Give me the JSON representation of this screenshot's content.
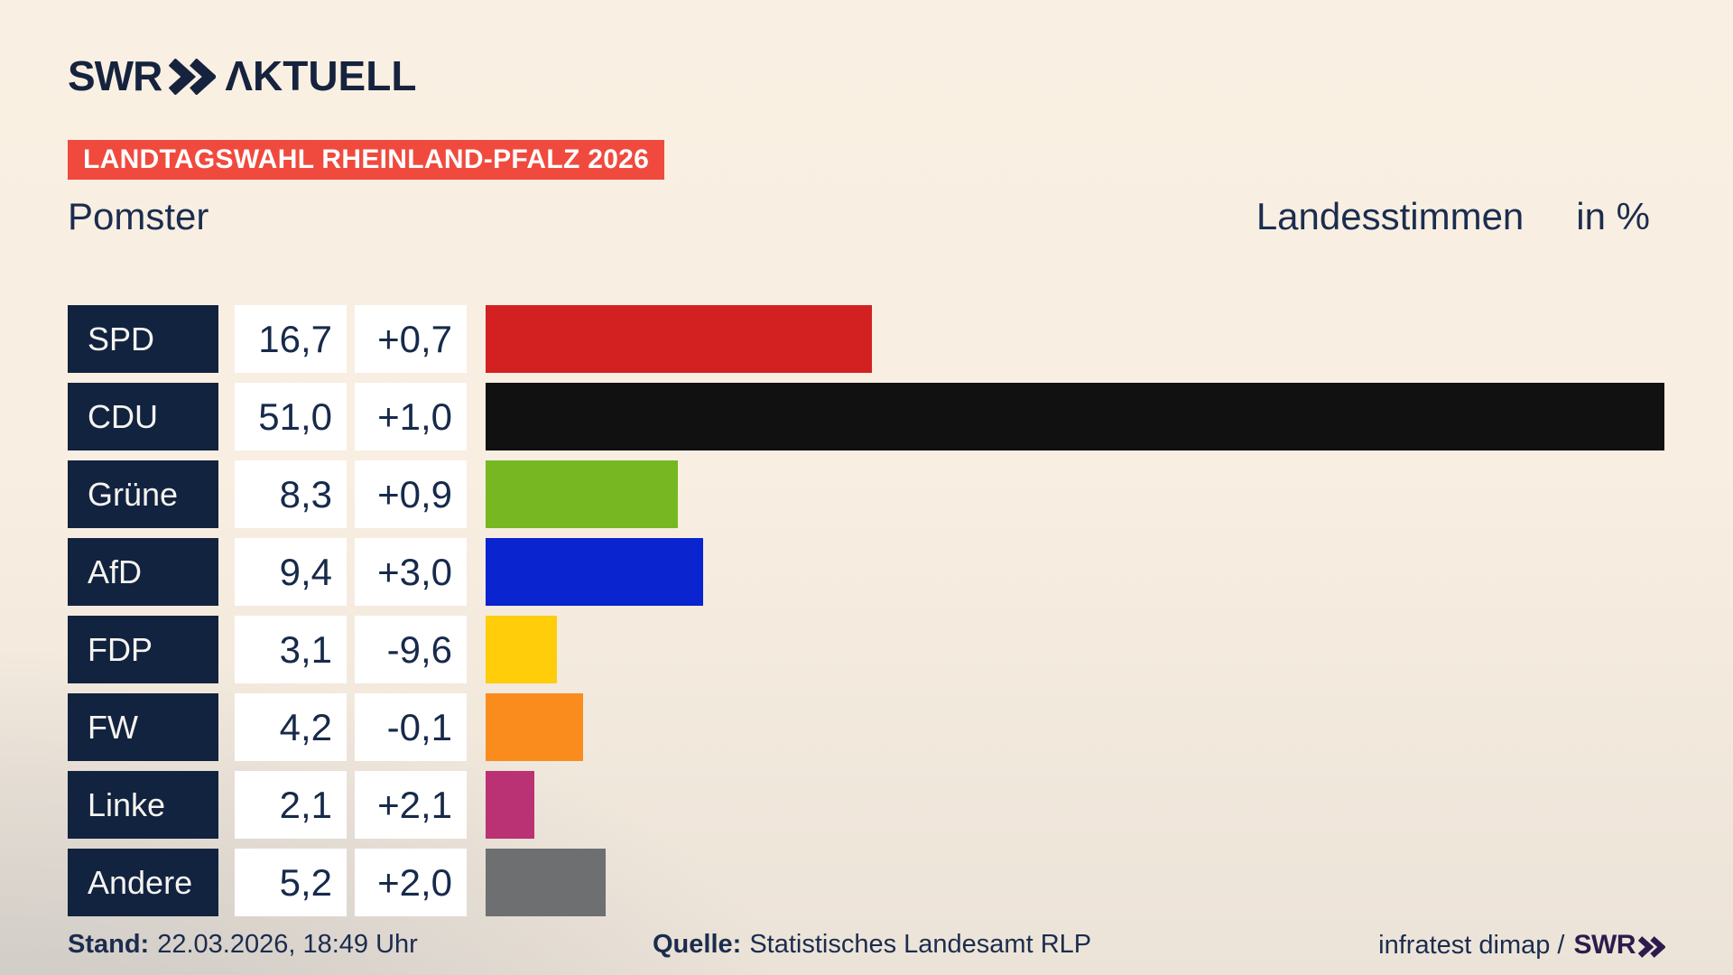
{
  "brand": {
    "logo_text": "SWR",
    "logo_suffix": "ΛKTUELL",
    "logo_color": "#16233e"
  },
  "header": {
    "badge": "LANDTAGSWAHL RHEINLAND-PFALZ 2026",
    "badge_color": "#f04a3e",
    "title": "Pomster",
    "measure": "Landesstimmen",
    "unit": "in %"
  },
  "chart_data": {
    "type": "bar",
    "orientation": "horizontal",
    "title": "Landtagswahl Rheinland-Pfalz 2026 — Pomster, Landesstimmen in %",
    "value_axis_max": 51.0,
    "grid": false,
    "legend": false,
    "categories": [
      "SPD",
      "CDU",
      "Grüne",
      "AfD",
      "FDP",
      "FW",
      "Linke",
      "Andere"
    ],
    "values": [
      16.7,
      51.0,
      8.3,
      9.4,
      3.1,
      4.2,
      2.1,
      5.2
    ],
    "changes": [
      0.7,
      1.0,
      0.9,
      3.0,
      -9.6,
      -0.1,
      2.1,
      2.0
    ],
    "parties": [
      {
        "name": "SPD",
        "value_label": "16,7",
        "change_label": "+0,7",
        "value": 16.7,
        "color": "#d32021"
      },
      {
        "name": "CDU",
        "value_label": "51,0",
        "change_label": "+1,0",
        "value": 51.0,
        "color": "#111111"
      },
      {
        "name": "Grüne",
        "value_label": "8,3",
        "change_label": "+0,9",
        "value": 8.3,
        "color": "#77b822"
      },
      {
        "name": "AfD",
        "value_label": "9,4",
        "change_label": "+3,0",
        "value": 9.4,
        "color": "#0a24d0"
      },
      {
        "name": "FDP",
        "value_label": "3,1",
        "change_label": "-9,6",
        "value": 3.1,
        "color": "#ffcd0a"
      },
      {
        "name": "FW",
        "value_label": "4,2",
        "change_label": "-0,1",
        "value": 4.2,
        "color": "#fa8c1d"
      },
      {
        "name": "Linke",
        "value_label": "2,1",
        "change_label": "+2,1",
        "value": 2.1,
        "color": "#ba3174"
      },
      {
        "name": "Andere",
        "value_label": "5,2",
        "change_label": "+2,0",
        "value": 5.2,
        "color": "#6e6f71"
      }
    ],
    "row_label_bg": "#122340",
    "cell_bg": "#ffffff"
  },
  "footer": {
    "stand_label": "Stand:",
    "stand_value": "22.03.2026, 18:49 Uhr",
    "quelle_label": "Quelle:",
    "quelle_value": "Statistisches Landesamt RLP",
    "credit": "infratest dimap /",
    "credit_brand": "SWR",
    "credit_brand_color": "#2c1b4d"
  }
}
